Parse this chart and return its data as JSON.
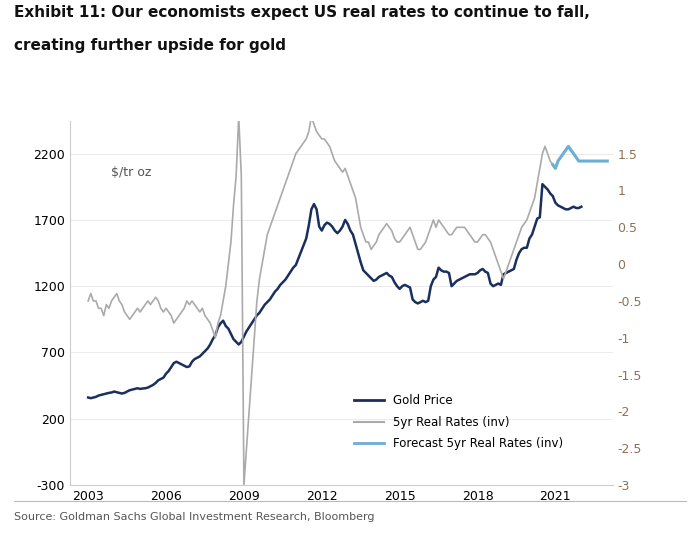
{
  "title_line1": "Exhibit 11: Our economists expect US real rates to continue to fall,",
  "title_line2": "creating further upside for gold",
  "source": "Source: Goldman Sachs Global Investment Research, Bloomberg",
  "ylabel_left": "$/tr oz",
  "ylim_left": [
    -300,
    2450
  ],
  "ylim_right": [
    -3,
    1.95
  ],
  "yticks_left": [
    -300,
    200,
    700,
    1200,
    1700,
    2200
  ],
  "yticks_right": [
    -3,
    -2.5,
    -2,
    -1.5,
    -1,
    -0.5,
    0,
    0.5,
    1,
    1.5
  ],
  "xticks": [
    2003,
    2006,
    2009,
    2012,
    2015,
    2018,
    2021
  ],
  "xlim": [
    2002.3,
    2023.2
  ],
  "gold_color": "#1a2f5e",
  "real_rates_color": "#aaaaaa",
  "forecast_color": "#6baed6",
  "right_axis_color": "#8B7355",
  "legend_labels": [
    "Gold Price",
    "5yr Real Rates (inv)",
    "Forecast 5yr Real Rates (inv)"
  ],
  "gold_price": {
    "dates": [
      2003.0,
      2003.1,
      2003.2,
      2003.3,
      2003.4,
      2003.5,
      2003.6,
      2003.7,
      2003.8,
      2003.9,
      2004.0,
      2004.1,
      2004.2,
      2004.3,
      2004.4,
      2004.5,
      2004.6,
      2004.7,
      2004.8,
      2004.9,
      2005.0,
      2005.1,
      2005.2,
      2005.3,
      2005.4,
      2005.5,
      2005.6,
      2005.7,
      2005.8,
      2005.9,
      2006.0,
      2006.1,
      2006.2,
      2006.3,
      2006.4,
      2006.5,
      2006.6,
      2006.7,
      2006.8,
      2006.9,
      2007.0,
      2007.1,
      2007.2,
      2007.3,
      2007.4,
      2007.5,
      2007.6,
      2007.7,
      2007.8,
      2007.9,
      2008.0,
      2008.1,
      2008.2,
      2008.3,
      2008.4,
      2008.5,
      2008.6,
      2008.7,
      2008.8,
      2008.9,
      2009.0,
      2009.1,
      2009.2,
      2009.3,
      2009.4,
      2009.5,
      2009.6,
      2009.7,
      2009.8,
      2009.9,
      2010.0,
      2010.1,
      2010.2,
      2010.3,
      2010.4,
      2010.5,
      2010.6,
      2010.7,
      2010.8,
      2010.9,
      2011.0,
      2011.1,
      2011.2,
      2011.3,
      2011.4,
      2011.5,
      2011.6,
      2011.7,
      2011.8,
      2011.9,
      2012.0,
      2012.1,
      2012.2,
      2012.3,
      2012.4,
      2012.5,
      2012.6,
      2012.7,
      2012.8,
      2012.9,
      2013.0,
      2013.1,
      2013.2,
      2013.3,
      2013.4,
      2013.5,
      2013.6,
      2013.7,
      2013.8,
      2013.9,
      2014.0,
      2014.1,
      2014.2,
      2014.3,
      2014.4,
      2014.5,
      2014.6,
      2014.7,
      2014.8,
      2014.9,
      2015.0,
      2015.1,
      2015.2,
      2015.3,
      2015.4,
      2015.5,
      2015.6,
      2015.7,
      2015.8,
      2015.9,
      2016.0,
      2016.1,
      2016.2,
      2016.3,
      2016.4,
      2016.5,
      2016.6,
      2016.7,
      2016.8,
      2016.9,
      2017.0,
      2017.1,
      2017.2,
      2017.3,
      2017.4,
      2017.5,
      2017.6,
      2017.7,
      2017.8,
      2017.9,
      2018.0,
      2018.1,
      2018.2,
      2018.3,
      2018.4,
      2018.5,
      2018.6,
      2018.7,
      2018.8,
      2018.9,
      2019.0,
      2019.1,
      2019.2,
      2019.3,
      2019.4,
      2019.5,
      2019.6,
      2019.7,
      2019.8,
      2019.9,
      2020.0,
      2020.1,
      2020.2,
      2020.3,
      2020.4,
      2020.5,
      2020.6,
      2020.7,
      2020.8,
      2020.9,
      2021.0,
      2021.1,
      2021.2,
      2021.3,
      2021.4,
      2021.5,
      2021.6,
      2021.7,
      2021.8,
      2021.9,
      2022.0
    ],
    "values": [
      360,
      355,
      360,
      365,
      375,
      380,
      385,
      390,
      395,
      398,
      405,
      400,
      395,
      390,
      395,
      405,
      415,
      420,
      425,
      430,
      425,
      428,
      430,
      435,
      445,
      455,
      470,
      490,
      500,
      510,
      540,
      560,
      590,
      620,
      630,
      620,
      610,
      600,
      590,
      595,
      630,
      650,
      660,
      670,
      690,
      710,
      730,
      760,
      800,
      830,
      890,
      920,
      940,
      900,
      880,
      840,
      800,
      780,
      760,
      780,
      820,
      860,
      890,
      920,
      950,
      980,
      1000,
      1030,
      1060,
      1080,
      1100,
      1130,
      1160,
      1180,
      1210,
      1230,
      1250,
      1280,
      1310,
      1340,
      1360,
      1410,
      1460,
      1510,
      1560,
      1660,
      1780,
      1820,
      1780,
      1650,
      1620,
      1660,
      1680,
      1670,
      1650,
      1620,
      1600,
      1620,
      1650,
      1700,
      1670,
      1620,
      1590,
      1520,
      1450,
      1380,
      1320,
      1300,
      1280,
      1260,
      1240,
      1250,
      1270,
      1280,
      1290,
      1300,
      1280,
      1270,
      1230,
      1200,
      1180,
      1200,
      1210,
      1200,
      1190,
      1100,
      1080,
      1070,
      1080,
      1090,
      1080,
      1090,
      1200,
      1250,
      1270,
      1340,
      1320,
      1310,
      1310,
      1300,
      1200,
      1220,
      1240,
      1250,
      1260,
      1270,
      1280,
      1290,
      1290,
      1290,
      1300,
      1320,
      1330,
      1310,
      1300,
      1220,
      1200,
      1210,
      1220,
      1210,
      1290,
      1300,
      1310,
      1320,
      1330,
      1400,
      1450,
      1480,
      1490,
      1490,
      1560,
      1590,
      1650,
      1710,
      1720,
      1970,
      1950,
      1930,
      1900,
      1880,
      1830,
      1810,
      1800,
      1790,
      1780,
      1780,
      1790,
      1800,
      1790,
      1790,
      1800
    ]
  },
  "real_rates_inv": {
    "dates": [
      2003.0,
      2003.1,
      2003.2,
      2003.3,
      2003.4,
      2003.5,
      2003.6,
      2003.7,
      2003.8,
      2003.9,
      2004.0,
      2004.1,
      2004.2,
      2004.3,
      2004.4,
      2004.5,
      2004.6,
      2004.7,
      2004.8,
      2004.9,
      2005.0,
      2005.1,
      2005.2,
      2005.3,
      2005.4,
      2005.5,
      2005.6,
      2005.7,
      2005.8,
      2005.9,
      2006.0,
      2006.1,
      2006.2,
      2006.3,
      2006.4,
      2006.5,
      2006.6,
      2006.7,
      2006.8,
      2006.9,
      2007.0,
      2007.1,
      2007.2,
      2007.3,
      2007.4,
      2007.5,
      2007.6,
      2007.7,
      2007.8,
      2007.9,
      2008.0,
      2008.1,
      2008.2,
      2008.3,
      2008.4,
      2008.5,
      2008.6,
      2008.7,
      2008.8,
      2008.9,
      2009.0,
      2009.1,
      2009.2,
      2009.3,
      2009.4,
      2009.5,
      2009.6,
      2009.7,
      2009.8,
      2009.9,
      2010.0,
      2010.1,
      2010.2,
      2010.3,
      2010.4,
      2010.5,
      2010.6,
      2010.7,
      2010.8,
      2010.9,
      2011.0,
      2011.1,
      2011.2,
      2011.3,
      2011.4,
      2011.5,
      2011.6,
      2011.7,
      2011.8,
      2011.9,
      2012.0,
      2012.1,
      2012.2,
      2012.3,
      2012.4,
      2012.5,
      2012.6,
      2012.7,
      2012.8,
      2012.9,
      2013.0,
      2013.1,
      2013.2,
      2013.3,
      2013.4,
      2013.5,
      2013.6,
      2013.7,
      2013.8,
      2013.9,
      2014.0,
      2014.1,
      2014.2,
      2014.3,
      2014.4,
      2014.5,
      2014.6,
      2014.7,
      2014.8,
      2014.9,
      2015.0,
      2015.1,
      2015.2,
      2015.3,
      2015.4,
      2015.5,
      2015.6,
      2015.7,
      2015.8,
      2015.9,
      2016.0,
      2016.1,
      2016.2,
      2016.3,
      2016.4,
      2016.5,
      2016.6,
      2016.7,
      2016.8,
      2016.9,
      2017.0,
      2017.1,
      2017.2,
      2017.3,
      2017.4,
      2017.5,
      2017.6,
      2017.7,
      2017.8,
      2017.9,
      2018.0,
      2018.1,
      2018.2,
      2018.3,
      2018.4,
      2018.5,
      2018.6,
      2018.7,
      2018.8,
      2018.9,
      2019.0,
      2019.1,
      2019.2,
      2019.3,
      2019.4,
      2019.5,
      2019.6,
      2019.7,
      2019.8,
      2019.9,
      2020.0,
      2020.1,
      2020.2,
      2020.3,
      2020.4,
      2020.5,
      2020.6,
      2020.7,
      2020.8,
      2020.9,
      2021.0
    ],
    "values": [
      -0.5,
      -0.4,
      -0.5,
      -0.5,
      -0.6,
      -0.6,
      -0.7,
      -0.55,
      -0.6,
      -0.5,
      -0.45,
      -0.4,
      -0.5,
      -0.55,
      -0.65,
      -0.7,
      -0.75,
      -0.7,
      -0.65,
      -0.6,
      -0.65,
      -0.6,
      -0.55,
      -0.5,
      -0.55,
      -0.5,
      -0.45,
      -0.5,
      -0.6,
      -0.65,
      -0.6,
      -0.65,
      -0.7,
      -0.8,
      -0.75,
      -0.7,
      -0.65,
      -0.6,
      -0.5,
      -0.55,
      -0.5,
      -0.55,
      -0.6,
      -0.65,
      -0.6,
      -0.7,
      -0.75,
      -0.8,
      -0.9,
      -1.0,
      -0.8,
      -0.7,
      -0.5,
      -0.3,
      0.0,
      0.3,
      0.8,
      1.2,
      2.0,
      1.2,
      -3.0,
      -2.5,
      -2.0,
      -1.5,
      -1.0,
      -0.5,
      -0.2,
      0.0,
      0.2,
      0.4,
      0.5,
      0.6,
      0.7,
      0.8,
      0.9,
      1.0,
      1.1,
      1.2,
      1.3,
      1.4,
      1.5,
      1.55,
      1.6,
      1.65,
      1.7,
      1.8,
      2.0,
      1.9,
      1.8,
      1.75,
      1.7,
      1.7,
      1.65,
      1.6,
      1.5,
      1.4,
      1.35,
      1.3,
      1.25,
      1.3,
      1.2,
      1.1,
      1.0,
      0.9,
      0.7,
      0.5,
      0.4,
      0.3,
      0.3,
      0.2,
      0.25,
      0.3,
      0.4,
      0.45,
      0.5,
      0.55,
      0.5,
      0.45,
      0.35,
      0.3,
      0.3,
      0.35,
      0.4,
      0.45,
      0.5,
      0.4,
      0.3,
      0.2,
      0.2,
      0.25,
      0.3,
      0.4,
      0.5,
      0.6,
      0.5,
      0.6,
      0.55,
      0.5,
      0.45,
      0.4,
      0.4,
      0.45,
      0.5,
      0.5,
      0.5,
      0.5,
      0.45,
      0.4,
      0.35,
      0.3,
      0.3,
      0.35,
      0.4,
      0.4,
      0.35,
      0.3,
      0.2,
      0.1,
      0.0,
      -0.1,
      -0.2,
      -0.1,
      0.0,
      0.1,
      0.2,
      0.3,
      0.4,
      0.5,
      0.55,
      0.6,
      0.7,
      0.8,
      0.9,
      1.1,
      1.3,
      1.5,
      1.6,
      1.5,
      1.4,
      1.35,
      1.3
    ]
  },
  "forecast_inv": {
    "dates": [
      2020.9,
      2021.0,
      2021.1,
      2021.2,
      2021.3,
      2021.4,
      2021.5,
      2021.6,
      2021.7,
      2021.8,
      2021.9,
      2022.0,
      2022.5,
      2023.0
    ],
    "values": [
      1.35,
      1.3,
      1.4,
      1.45,
      1.5,
      1.55,
      1.6,
      1.55,
      1.5,
      1.45,
      1.4,
      1.4,
      1.4,
      1.4
    ]
  },
  "bg_color": "#ffffff"
}
